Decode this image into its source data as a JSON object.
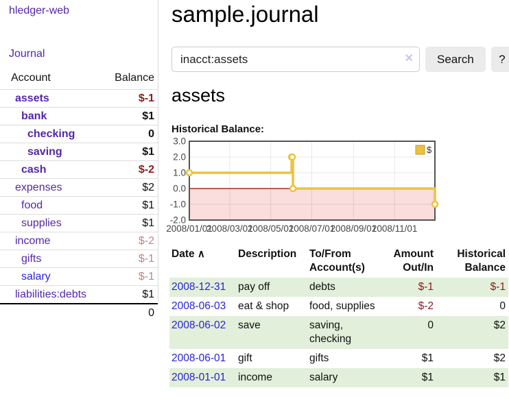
{
  "app": {
    "brand": "hledger-web"
  },
  "sidebar": {
    "journal_label": "Journal",
    "accounts_header": {
      "account": "Account",
      "balance": "Balance"
    },
    "accounts": [
      {
        "name": "assets",
        "balance": "$-1",
        "indent": 1,
        "bold": true,
        "negative": true,
        "blue": false
      },
      {
        "name": "bank",
        "balance": "$1",
        "indent": 2,
        "bold": true,
        "negative": false,
        "blue": false
      },
      {
        "name": "checking",
        "balance": "0",
        "indent": 3,
        "bold": true,
        "negative": false,
        "blue": false
      },
      {
        "name": "saving",
        "balance": "$1",
        "indent": 3,
        "bold": true,
        "negative": false,
        "blue": false
      },
      {
        "name": "cash",
        "balance": "$-2",
        "indent": 2,
        "bold": true,
        "negative": true,
        "blue": false
      },
      {
        "name": "expenses",
        "balance": "$2",
        "indent": 1,
        "bold": false,
        "negative": false,
        "blue": false
      },
      {
        "name": "food",
        "balance": "$1",
        "indent": 2,
        "bold": false,
        "negative": false,
        "blue": false
      },
      {
        "name": "supplies",
        "balance": "$1",
        "indent": 2,
        "bold": false,
        "negative": false,
        "blue": false
      },
      {
        "name": "income",
        "balance": "$-2",
        "indent": 1,
        "bold": false,
        "negative": true,
        "blue": false
      },
      {
        "name": "gifts",
        "balance": "$-1",
        "indent": 2,
        "bold": false,
        "negative": true,
        "blue": false
      },
      {
        "name": "salary",
        "balance": "$-1",
        "indent": 2,
        "bold": false,
        "negative": true,
        "blue": true
      },
      {
        "name": "liabilities:debts",
        "balance": "$1",
        "indent": 1,
        "bold": false,
        "negative": false,
        "blue": false
      }
    ],
    "total": "0"
  },
  "header": {
    "title": "sample.journal"
  },
  "search": {
    "value": "inacct:assets",
    "clear_icon": "×",
    "button": "Search",
    "help_button": "?"
  },
  "account_page": {
    "title": "assets",
    "chart_label": "Historical Balance:"
  },
  "chart_data": {
    "type": "line",
    "step": true,
    "title": "Historical Balance:",
    "xlabel": "",
    "ylabel": "",
    "xlim": [
      "2008-01-01",
      "2008-12-31"
    ],
    "ylim": [
      -2,
      3
    ],
    "x_ticks": [
      "2008/01/01",
      "2008/03/01",
      "2008/05/01",
      "2008/07/01",
      "2008/09/01",
      "2008/11/01"
    ],
    "y_ticks": [
      "3.0",
      "2.0",
      "1.0",
      "0.0",
      "-1.0",
      "-2.0"
    ],
    "grid": true,
    "legend_position": "top-right",
    "series": [
      {
        "name": "$",
        "color": "#edc240",
        "points": [
          [
            "2008-01-01",
            1
          ],
          [
            "2008-06-01",
            2
          ],
          [
            "2008-06-02",
            2
          ],
          [
            "2008-06-03",
            0
          ],
          [
            "2008-12-31",
            -1
          ]
        ]
      }
    ],
    "negative_region_color": "#fadddd",
    "zero_line_color": "#990000",
    "border_color": "#545454"
  },
  "register": {
    "columns": {
      "date": "Date",
      "description": "Description",
      "accounts": "To/From Account(s)",
      "amount": "Amount Out/In",
      "balance": "Historical Balance"
    },
    "sort_asc_icon": "∧",
    "rows": [
      {
        "date": "2008-12-31",
        "description": "pay off",
        "accounts": "debts",
        "amount": "$-1",
        "balance": "$-1",
        "shaded": true
      },
      {
        "date": "2008-06-03",
        "description": "eat & shop",
        "accounts": "food, supplies",
        "amount": "$-2",
        "balance": "0",
        "shaded": false
      },
      {
        "date": "2008-06-02",
        "description": "save",
        "accounts": "saving, checking",
        "amount": "0",
        "balance": "$2",
        "shaded": true
      },
      {
        "date": "2008-06-01",
        "description": "gift",
        "accounts": "gifts",
        "amount": "$1",
        "balance": "$2",
        "shaded": false
      },
      {
        "date": "2008-01-01",
        "description": "income",
        "accounts": "salary",
        "amount": "$1",
        "balance": "$1",
        "shaded": true
      }
    ]
  },
  "colors": {
    "link_purple": "#5327a6",
    "link_blue": "#2823d8",
    "negative_red": "#8b1d1d",
    "negative_muted_red": "#c08486",
    "row_shade_green": "#e2efda",
    "series_gold": "#edc240"
  }
}
